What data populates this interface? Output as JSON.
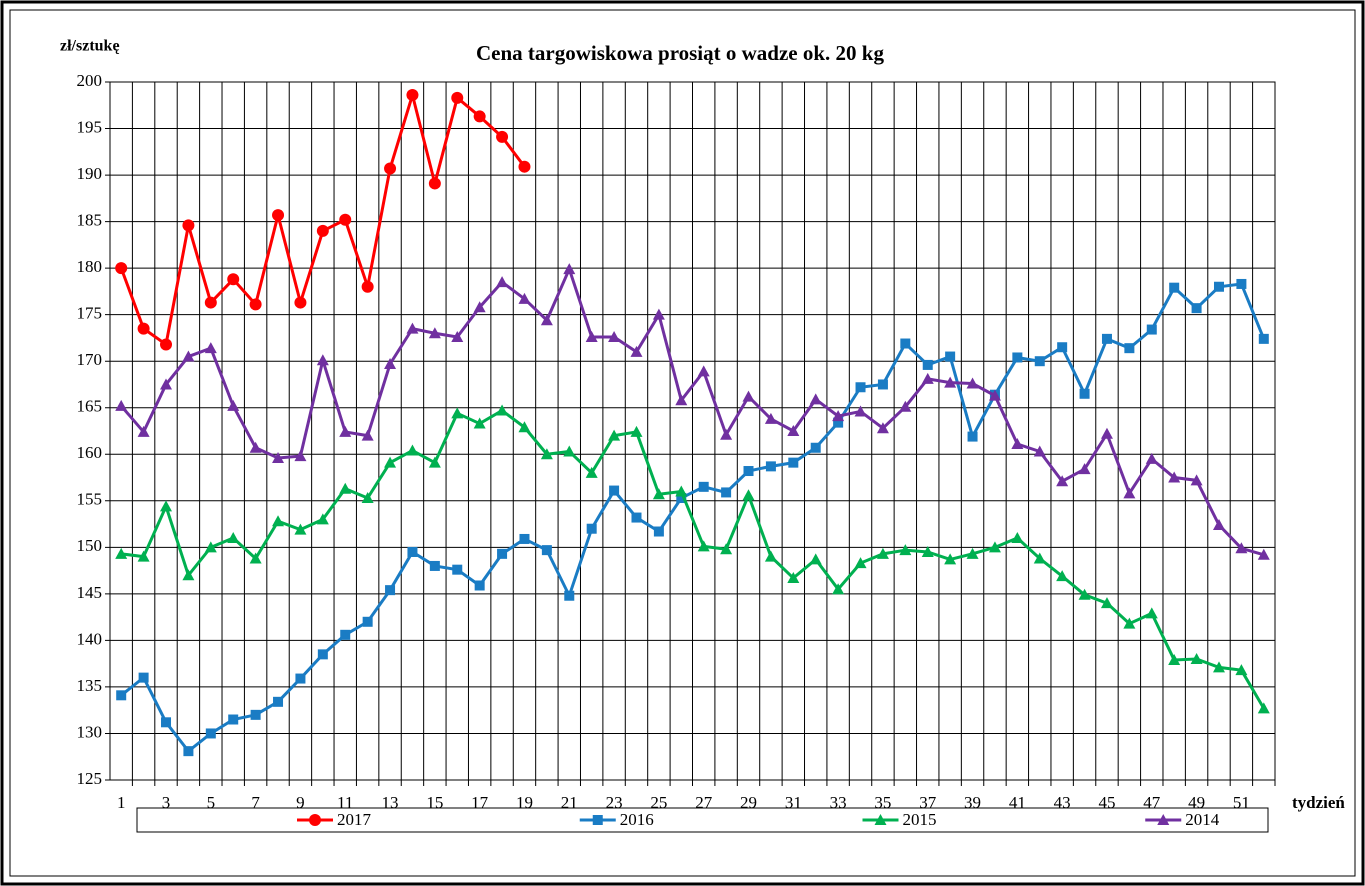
{
  "chart_data": {
    "type": "line",
    "title": "Cena targowiskowa prosiąt o wadze ok. 20 kg",
    "y_label": "zł/sztukę",
    "x_label": "tydzień",
    "categories": [
      "1",
      null,
      "3",
      null,
      "5",
      null,
      "7",
      null,
      "9",
      null,
      "11",
      null,
      "13",
      null,
      "15",
      null,
      "17",
      null,
      "19",
      null,
      "21",
      null,
      "23",
      null,
      "25",
      null,
      "27",
      null,
      "29",
      null,
      "31",
      null,
      "33",
      null,
      "35",
      null,
      "37",
      null,
      "39",
      null,
      "41",
      null,
      "43",
      null,
      "45",
      null,
      "47",
      null,
      "49",
      null,
      "51",
      null
    ],
    "ylim": [
      125,
      200
    ],
    "yticks": [
      125,
      130,
      135,
      140,
      145,
      150,
      155,
      160,
      165,
      170,
      175,
      180,
      185,
      190,
      195,
      200
    ],
    "grid": true,
    "legend": "bottom",
    "series": [
      {
        "name": "2017",
        "color": "#ff0000",
        "marker": "circle",
        "values": [
          180,
          173.5,
          171.8,
          184.6,
          176.3,
          178.8,
          176.1,
          185.7,
          176.3,
          184,
          185.2,
          178,
          190.7,
          198.6,
          189.1,
          198.3,
          196.3,
          194.1,
          190.9,
          null,
          null,
          null,
          null,
          null,
          null,
          null,
          null,
          null,
          null,
          null,
          null,
          null,
          null,
          null,
          null,
          null,
          null,
          null,
          null,
          null,
          null,
          null,
          null,
          null,
          null,
          null,
          null,
          null,
          null,
          null,
          null,
          null
        ]
      },
      {
        "name": "2016",
        "color": "#1a7cc4",
        "marker": "square",
        "values": [
          134.1,
          136,
          131.2,
          128.1,
          130,
          131.5,
          132,
          133.4,
          135.9,
          138.5,
          140.6,
          142,
          145.4,
          149.5,
          148,
          147.6,
          145.9,
          149.3,
          150.9,
          149.7,
          144.8,
          152,
          156.1,
          153.2,
          151.7,
          155.3,
          156.5,
          155.9,
          158.2,
          158.7,
          159.1,
          160.7,
          163.4,
          167.2,
          167.5,
          171.9,
          169.6,
          170.5,
          161.9,
          166.4,
          170.4,
          170,
          171.5,
          166.5,
          172.4,
          171.4,
          173.4,
          177.9,
          175.7,
          178,
          178.3,
          172.4
        ]
      },
      {
        "name": "2015",
        "color": "#00b050",
        "marker": "triangle",
        "values": [
          149.3,
          149,
          154.4,
          147,
          150,
          151,
          148.8,
          152.8,
          151.9,
          153,
          156.3,
          155.3,
          159.1,
          160.4,
          159.1,
          164.4,
          163.3,
          164.7,
          162.9,
          160,
          160.3,
          158,
          162,
          162.4,
          155.7,
          156,
          150.1,
          149.8,
          155.6,
          149,
          146.7,
          148.7,
          145.5,
          148.3,
          149.3,
          149.7,
          149.5,
          148.7,
          149.3,
          150,
          151,
          148.8,
          146.9,
          144.9,
          144,
          141.8,
          142.9,
          137.9,
          138,
          137.1,
          136.8,
          132.7
        ]
      },
      {
        "name": "2014",
        "color": "#7030a0",
        "marker": "triangle",
        "values": [
          165.2,
          162.4,
          167.5,
          170.5,
          171.4,
          165.2,
          160.7,
          159.6,
          159.8,
          170.1,
          162.4,
          162,
          169.7,
          173.5,
          173,
          172.6,
          175.8,
          178.5,
          176.7,
          174.4,
          179.9,
          172.6,
          172.6,
          171,
          175,
          165.8,
          168.9,
          162.1,
          166.2,
          163.8,
          162.5,
          165.9,
          164.1,
          164.6,
          162.8,
          165.1,
          168.1,
          167.7,
          167.6,
          166.3,
          161.1,
          160.3,
          157.1,
          158.4,
          162.2,
          155.8,
          159.5,
          157.5,
          157.2,
          152.4,
          149.9,
          149.2
        ]
      }
    ]
  }
}
